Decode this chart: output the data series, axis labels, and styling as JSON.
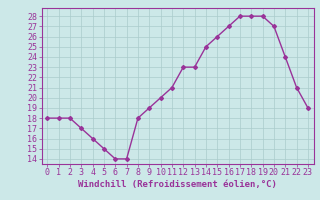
{
  "x": [
    0,
    1,
    2,
    3,
    4,
    5,
    6,
    7,
    8,
    9,
    10,
    11,
    12,
    13,
    14,
    15,
    16,
    17,
    18,
    19,
    20,
    21,
    22,
    23
  ],
  "y": [
    18,
    18,
    18,
    17,
    16,
    15,
    14,
    14,
    18,
    19,
    20,
    21,
    23,
    23,
    25,
    26,
    27,
    28,
    28,
    28,
    27,
    24,
    21,
    19
  ],
  "line_color": "#993399",
  "marker": "D",
  "marker_size": 2.0,
  "linewidth": 1.0,
  "xlabel": "Windchill (Refroidissement éolien,°C)",
  "xlabel_fontsize": 6.5,
  "ylabel_ticks": [
    14,
    15,
    16,
    17,
    18,
    19,
    20,
    21,
    22,
    23,
    24,
    25,
    26,
    27,
    28
  ],
  "xlim": [
    -0.5,
    23.5
  ],
  "ylim": [
    13.5,
    28.8
  ],
  "background_color": "#cce8e8",
  "grid_color": "#aacccc",
  "tick_fontsize": 6.0
}
